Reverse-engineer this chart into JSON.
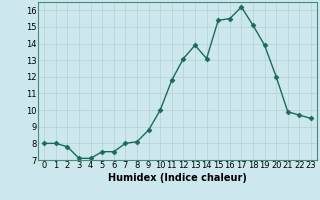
{
  "x": [
    0,
    1,
    2,
    3,
    4,
    5,
    6,
    7,
    8,
    9,
    10,
    11,
    12,
    13,
    14,
    15,
    16,
    17,
    18,
    19,
    20,
    21,
    22,
    23
  ],
  "y": [
    8.0,
    8.0,
    7.8,
    7.1,
    7.1,
    7.5,
    7.5,
    8.0,
    8.1,
    8.8,
    10.0,
    11.8,
    13.1,
    13.9,
    13.1,
    15.4,
    15.5,
    16.2,
    15.1,
    13.9,
    12.0,
    9.9,
    9.7,
    9.5
  ],
  "line_color": "#1a6b5a",
  "marker": "D",
  "marker_size": 2.5,
  "bg_color": "#cce8ee",
  "grid_color": "#b8d4d8",
  "xlabel": "Humidex (Indice chaleur)",
  "xlim": [
    -0.5,
    23.5
  ],
  "ylim": [
    7,
    16.5
  ],
  "yticks": [
    7,
    8,
    9,
    10,
    11,
    12,
    13,
    14,
    15,
    16
  ],
  "label_fontsize": 7,
  "tick_fontsize": 6,
  "spine_color": "#4a8a7a",
  "linewidth": 1.0
}
